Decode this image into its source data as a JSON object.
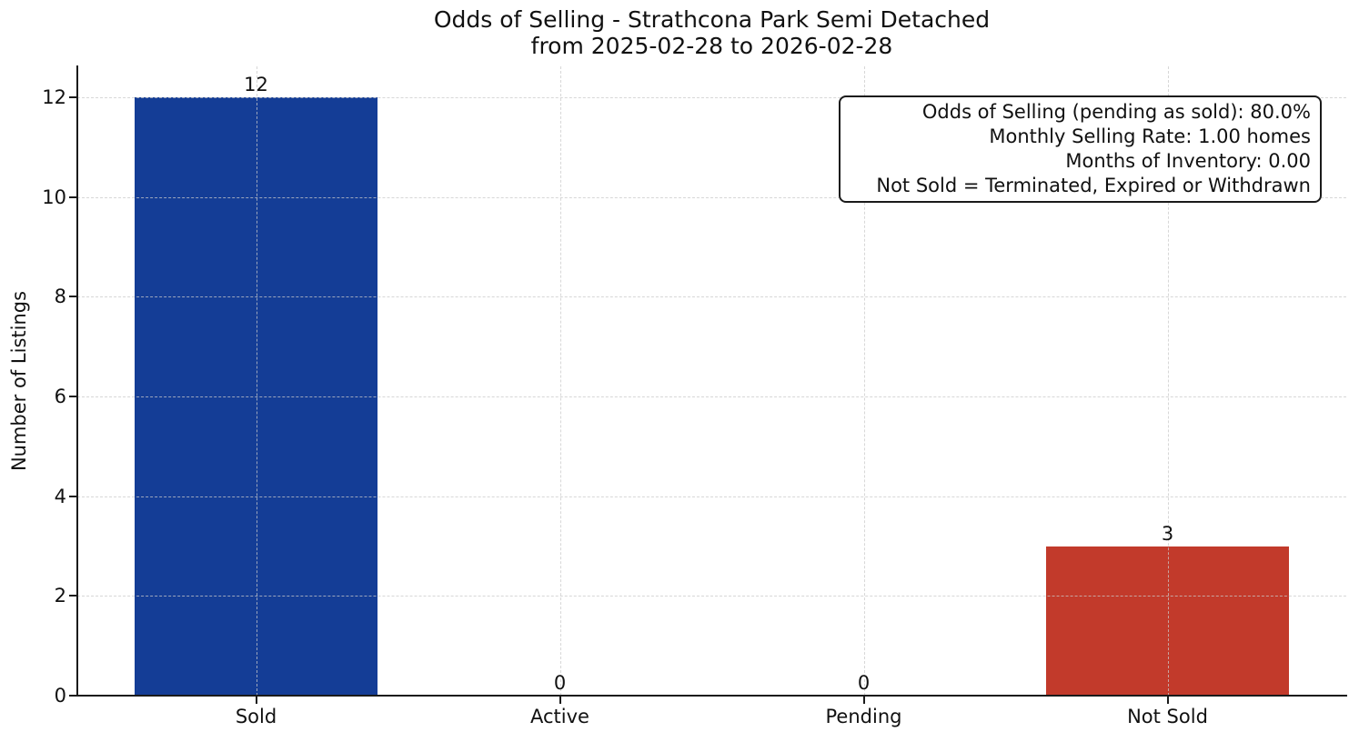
{
  "title": {
    "line1": "Odds of Selling - Strathcona Park Semi Detached",
    "line2": "from 2025-02-28 to 2026-02-28"
  },
  "annotation": {
    "lines": [
      "Odds of Selling (pending as sold): 80.0%",
      "Monthly Selling Rate: 1.00 homes",
      "Months of Inventory: 0.00",
      "Not Sold = Terminated, Expired or Withdrawn"
    ]
  },
  "chart_data": {
    "type": "bar",
    "title": "Odds of Selling - Strathcona Park Semi Detached\nfrom 2025-02-28 to 2026-02-28",
    "categories": [
      "Sold",
      "Active",
      "Pending",
      "Not Sold"
    ],
    "values": [
      12,
      0,
      0,
      3
    ],
    "value_labels": [
      "12",
      "0",
      "0",
      "3"
    ],
    "bar_colors": [
      "#143D96",
      "#143D96",
      "#143D96",
      "#C23A2B"
    ],
    "xlabel": "",
    "ylabel": "Number of Listings",
    "yticks": [
      0,
      2,
      4,
      6,
      8,
      10,
      12
    ],
    "ylim": [
      0,
      12.6
    ],
    "grid": {
      "visible": true,
      "style": "dashed",
      "axes": "both",
      "color": "#C9C9C9"
    },
    "legend": null,
    "colors": {
      "sold_bar": "#143D96",
      "not_sold_bar": "#C23A2B",
      "axis": "#1A1A1A",
      "text": "#111111",
      "background": "#FFFFFF"
    }
  }
}
